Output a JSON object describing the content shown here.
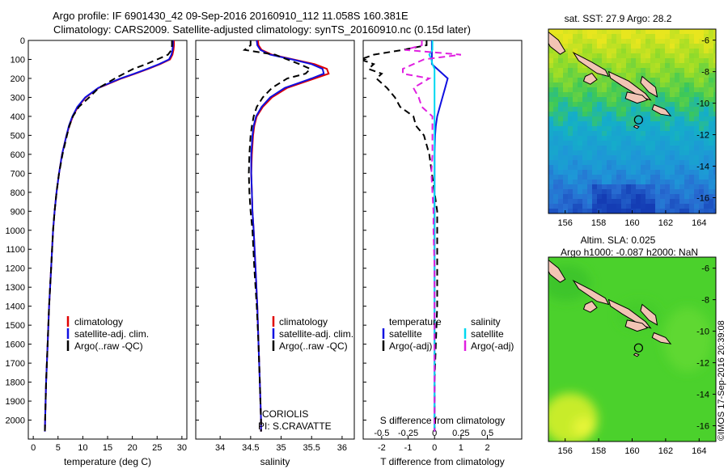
{
  "header": {
    "line1": "Argo profile: IF 6901430_42 09-Sep-2016 20160910_112 11.058S 160.381E",
    "line2": "Climatology: CARS2009. Satellite-adjusted climatology: synTS_20160910.nc (0.15d later)"
  },
  "side_label": "©IMOS 17-Sep-2016 20:39:08",
  "colors": {
    "climatology": "#e00000",
    "satellite": "#1010e0",
    "argo": "#000000",
    "sal_satellite": "#00d8f0",
    "sal_argo": "#e020e0"
  },
  "chart_data": [
    {
      "type": "line",
      "name": "temperature-profile",
      "xlabel": "temperature (deg C)",
      "ylim": [
        0,
        2100
      ],
      "xlim": [
        -1,
        31
      ],
      "xticks": [
        "0",
        "5",
        "10",
        "15",
        "20",
        "25",
        "30"
      ],
      "yticks": [
        "0",
        "100",
        "200",
        "300",
        "400",
        "500",
        "600",
        "700",
        "800",
        "900",
        "1000",
        "1100",
        "1200",
        "1300",
        "1400",
        "1500",
        "1600",
        "1700",
        "1800",
        "1900",
        "2000"
      ],
      "legend": [
        "climatology",
        "satellite-adj. clim.",
        "Argo(..raw -QC)"
      ],
      "depth": [
        0,
        25,
        50,
        75,
        100,
        125,
        150,
        175,
        200,
        250,
        300,
        350,
        400,
        450,
        500,
        600,
        700,
        800,
        900,
        1000,
        1200,
        1400,
        1600,
        1800,
        2000,
        2060
      ],
      "series": [
        {
          "name": "climatology",
          "style": "solid",
          "values": [
            28.4,
            28.4,
            28.3,
            28.1,
            27.6,
            25.6,
            23.2,
            20.6,
            17.8,
            13.2,
            10.6,
            9.0,
            8.0,
            7.3,
            6.7,
            5.8,
            5.2,
            4.7,
            4.3,
            4.0,
            3.6,
            3.2,
            2.9,
            2.6,
            2.4,
            2.35
          ]
        },
        {
          "name": "satellite-adj. clim.",
          "style": "solid",
          "values": [
            28.2,
            28.2,
            28.1,
            27.9,
            27.4,
            25.4,
            23.0,
            20.4,
            17.6,
            13.1,
            10.5,
            8.9,
            7.9,
            7.2,
            6.7,
            5.8,
            5.2,
            4.7,
            4.3,
            4.0,
            3.6,
            3.2,
            2.9,
            2.6,
            2.4,
            2.35
          ]
        },
        {
          "name": "Argo(..raw -QC)",
          "style": "dashed",
          "values": [
            28.0,
            28.0,
            27.9,
            27.2,
            25.0,
            22.8,
            20.2,
            18.3,
            16.5,
            13.2,
            11.3,
            9.2,
            8.0,
            7.3,
            6.8,
            5.9,
            5.2,
            4.7,
            4.3,
            4.0,
            3.6,
            3.2,
            2.9,
            2.6,
            2.4,
            2.35
          ]
        }
      ]
    },
    {
      "type": "line",
      "name": "salinity-profile",
      "xlabel": "salinity",
      "ylim": [
        0,
        2100
      ],
      "xlim": [
        33.6,
        36.2
      ],
      "xticks": [
        "34",
        "34.5",
        "35",
        "35.5",
        "36"
      ],
      "legend": [
        "climatology",
        "satellite-adj. clim.",
        "Argo(..raw -QC)"
      ],
      "notes": [
        "CORIOLIS",
        "PI: S.CRAVATTE"
      ],
      "depth": [
        0,
        25,
        50,
        75,
        100,
        125,
        150,
        175,
        200,
        250,
        300,
        350,
        400,
        450,
        500,
        600,
        700,
        800,
        900,
        1000,
        1200,
        1400,
        1600,
        1800,
        2000,
        2060
      ],
      "series": [
        {
          "name": "climatology",
          "style": "solid",
          "values": [
            34.62,
            34.63,
            34.68,
            34.85,
            35.2,
            35.55,
            35.75,
            35.78,
            35.55,
            35.1,
            34.85,
            34.7,
            34.6,
            34.56,
            34.54,
            34.52,
            34.51,
            34.52,
            34.53,
            34.55,
            34.58,
            34.61,
            34.63,
            34.65,
            34.67,
            34.67
          ]
        },
        {
          "name": "satellite-adj. clim.",
          "style": "solid",
          "values": [
            34.6,
            34.61,
            34.66,
            34.82,
            35.18,
            35.5,
            35.68,
            35.7,
            35.5,
            35.06,
            34.82,
            34.68,
            34.59,
            34.55,
            34.53,
            34.51,
            34.51,
            34.52,
            34.53,
            34.55,
            34.58,
            34.61,
            34.63,
            34.65,
            34.67,
            34.67
          ]
        },
        {
          "name": "Argo(..raw -QC)",
          "style": "dashed",
          "values": [
            34.5,
            34.5,
            34.4,
            34.9,
            35.1,
            35.3,
            35.48,
            35.4,
            35.1,
            34.85,
            34.7,
            34.6,
            34.55,
            34.52,
            34.5,
            34.48,
            34.47,
            34.48,
            34.5,
            34.53,
            34.56,
            34.6,
            34.63,
            34.65,
            34.67,
            34.67
          ]
        }
      ]
    },
    {
      "type": "line",
      "name": "difference-profile",
      "xlabel": "T difference from climatology",
      "xlabel_top": "S difference from climatology",
      "ylim": [
        0,
        2100
      ],
      "t_ticks": [
        "-2",
        "-1",
        "0",
        "1",
        "2"
      ],
      "s_ticks": [
        "-0.5",
        "-0.25",
        "0",
        "0.25",
        "0.5"
      ],
      "legend_temperature": {
        "title": "temperature",
        "items": [
          "satellite",
          "Argo(-adj)"
        ]
      },
      "legend_salinity": {
        "title": "salinity",
        "items": [
          "satellite",
          "Argo(-adj)"
        ]
      },
      "depth": [
        0,
        25,
        50,
        75,
        100,
        125,
        150,
        175,
        200,
        250,
        300,
        350,
        400,
        450,
        500,
        600,
        700,
        800,
        900,
        1000,
        1200,
        1400,
        1600,
        1800,
        2000,
        2060
      ],
      "series": [
        {
          "name": "temperature satellite",
          "axis": "T",
          "style": "solid",
          "values": [
            -0.1,
            -0.1,
            -0.1,
            -0.1,
            -0.1,
            -0.1,
            0.1,
            0.3,
            0.5,
            0.4,
            0.3,
            0.2,
            0.1,
            0.05,
            0.02,
            0.0,
            0.0,
            0.0,
            0.0,
            0.0,
            0.0,
            0.0,
            0.0,
            0.0,
            0.0,
            0.0
          ]
        },
        {
          "name": "temperature Argo(-adj)",
          "axis": "T",
          "style": "dashed",
          "values": [
            -0.3,
            -0.3,
            -1.2,
            -2.3,
            -2.8,
            -2.3,
            -2.5,
            -2.0,
            -2.2,
            -1.8,
            -1.5,
            -1.3,
            -0.8,
            -0.7,
            -0.4,
            -0.2,
            -0.1,
            0.0,
            0.1,
            0.1,
            0.1,
            0.1,
            0.05,
            0.0,
            0.0,
            0.0
          ]
        },
        {
          "name": "salinity satellite",
          "axis": "S",
          "style": "solid",
          "values": [
            -0.02,
            -0.02,
            -0.02,
            -0.05,
            -0.03,
            -0.02,
            0.0,
            0.0,
            0.0,
            0.0,
            0.0,
            0.0,
            0.0,
            0.0,
            0.0,
            0.0,
            0.0,
            0.0,
            0.0,
            0.0,
            0.0,
            0.0,
            0.0,
            0.0,
            0.0,
            0.0
          ]
        },
        {
          "name": "salinity Argo(-adj)",
          "axis": "S",
          "style": "dashed",
          "values": [
            -0.12,
            -0.12,
            -0.28,
            0.25,
            -0.1,
            -0.2,
            -0.3,
            -0.3,
            -0.05,
            -0.2,
            -0.15,
            -0.12,
            -0.02,
            -0.02,
            -0.02,
            -0.02,
            -0.03,
            -0.02,
            -0.01,
            -0.01,
            0.0,
            0.0,
            0.0,
            0.0,
            0.0,
            0.0
          ]
        }
      ]
    },
    {
      "type": "heatmap",
      "name": "sst-map",
      "title": "sat. SST: 27.9 Argo: 28.2",
      "xlim": [
        155,
        165
      ],
      "ylim": [
        -17,
        -5.3
      ],
      "xticks": [
        "156",
        "158",
        "160",
        "162",
        "164"
      ],
      "yticks": [
        "-6",
        "-8",
        "-10",
        "-12",
        "-14",
        "-16"
      ],
      "marker": {
        "lon": 160.381,
        "lat": -11.058
      }
    },
    {
      "type": "heatmap",
      "name": "sla-map",
      "title": "Altim. SLA: 0.025",
      "subtitle": "Argo h1000: -0.087 h2000: NaN",
      "xlim": [
        155,
        165
      ],
      "ylim": [
        -17,
        -5.3
      ],
      "xticks": [
        "156",
        "158",
        "160",
        "162",
        "164"
      ],
      "yticks": [
        "-6",
        "-8",
        "-10",
        "-12",
        "-14",
        "-16"
      ],
      "marker": {
        "lon": 160.381,
        "lat": -11.058
      }
    }
  ]
}
